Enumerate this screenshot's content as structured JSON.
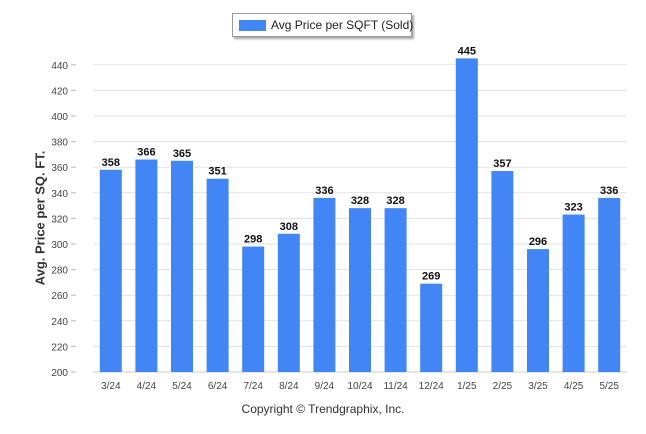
{
  "chart_data": {
    "type": "bar",
    "title": "",
    "xlabel": "",
    "ylabel": "Avg. Price per SQ. FT.",
    "categories": [
      "3/24",
      "4/24",
      "5/24",
      "6/24",
      "7/24",
      "8/24",
      "9/24",
      "10/24",
      "11/24",
      "12/24",
      "1/25",
      "2/25",
      "3/25",
      "4/25",
      "5/25"
    ],
    "series": [
      {
        "name": "Avg Price per SQFT (Sold)",
        "color": "#4285f4",
        "values": [
          358,
          366,
          365,
          351,
          298,
          308,
          336,
          328,
          328,
          269,
          445,
          357,
          296,
          323,
          336
        ]
      }
    ],
    "ylim": [
      200,
      450
    ],
    "yticks": [
      200,
      220,
      240,
      260,
      280,
      300,
      320,
      340,
      360,
      380,
      400,
      420,
      440
    ],
    "grid": true,
    "legend_position": "top-center",
    "data_labels": true
  },
  "footer": {
    "copyright": "Copyright © Trendgraphix, Inc."
  }
}
